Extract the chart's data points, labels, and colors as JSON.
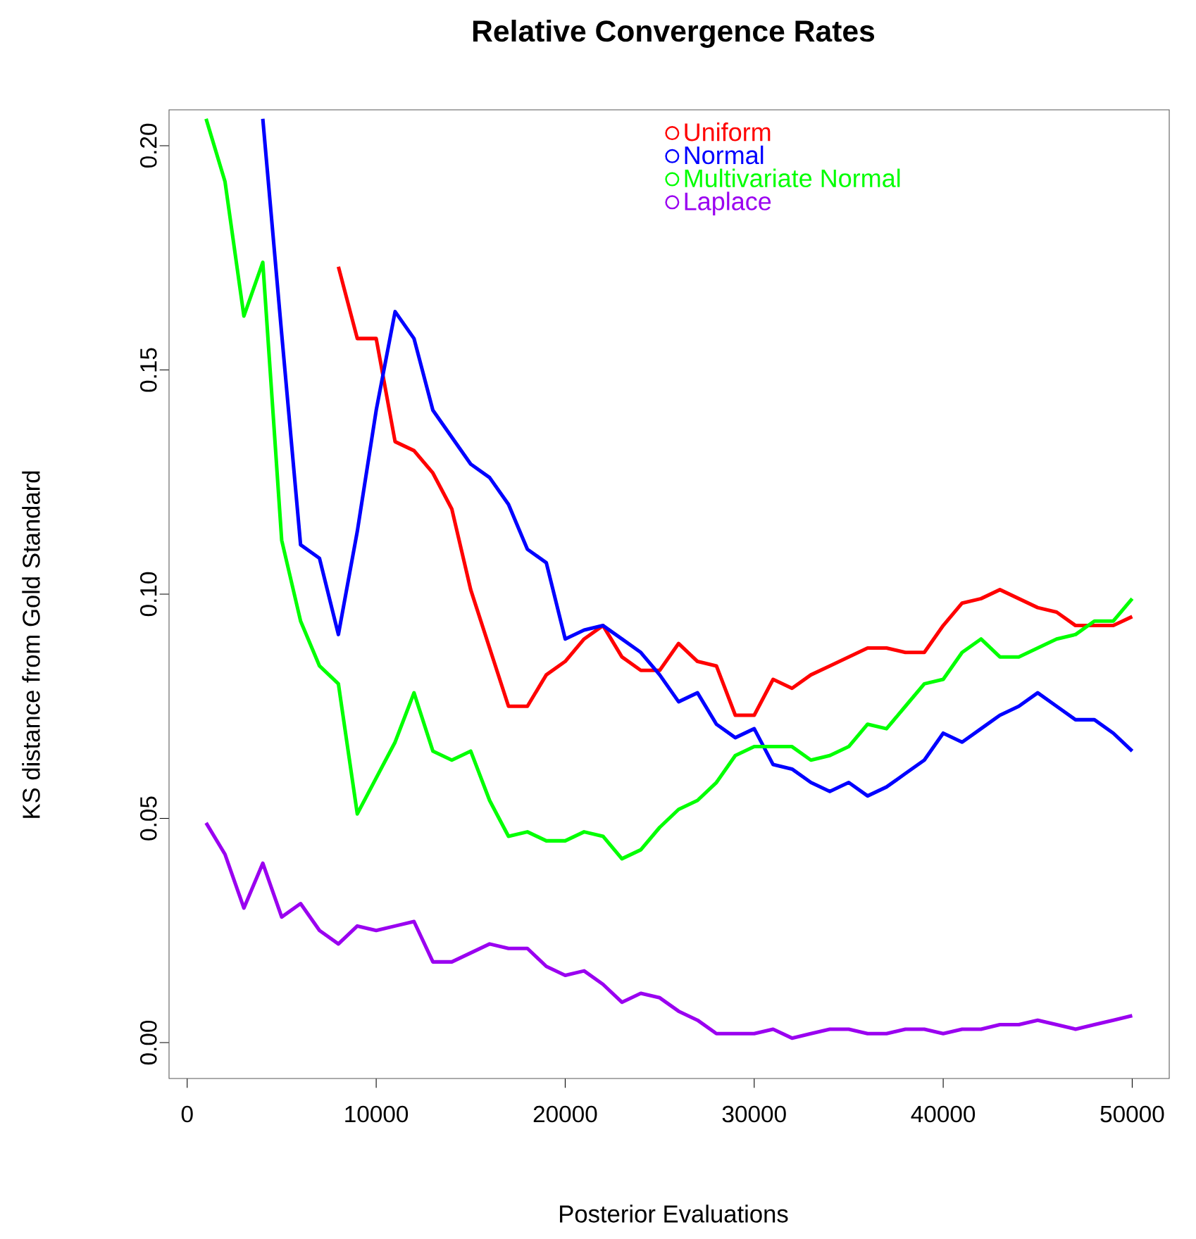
{
  "chart_data": {
    "type": "line",
    "title": "Relative Convergence Rates",
    "xlabel": "Posterior Evaluations",
    "ylabel": "KS distance from Gold Standard",
    "x": [
      1000,
      2000,
      3000,
      4000,
      5000,
      6000,
      7000,
      8000,
      9000,
      10000,
      11000,
      12000,
      13000,
      14000,
      15000,
      16000,
      17000,
      18000,
      19000,
      20000,
      21000,
      22000,
      23000,
      24000,
      25000,
      26000,
      27000,
      28000,
      29000,
      30000,
      31000,
      32000,
      33000,
      34000,
      35000,
      36000,
      37000,
      38000,
      39000,
      40000,
      41000,
      42000,
      43000,
      44000,
      45000,
      46000,
      47000,
      48000,
      49000,
      50000
    ],
    "series": [
      {
        "name": "Uniform",
        "color": "#ff0000",
        "values": [
          null,
          null,
          null,
          null,
          null,
          null,
          null,
          0.173,
          0.157,
          0.157,
          0.134,
          0.132,
          0.127,
          0.119,
          0.101,
          0.088,
          0.075,
          0.075,
          0.082,
          0.085,
          0.09,
          0.093,
          0.086,
          0.083,
          0.083,
          0.089,
          0.085,
          0.084,
          0.073,
          0.073,
          0.081,
          0.079,
          0.082,
          0.084,
          0.086,
          0.088,
          0.088,
          0.087,
          0.087,
          0.093,
          0.098,
          0.099,
          0.101,
          0.099,
          0.097,
          0.096,
          0.093,
          0.093,
          0.093,
          0.095
        ]
      },
      {
        "name": "Normal",
        "color": "#0000ff",
        "values": [
          null,
          null,
          null,
          0.206,
          0.158,
          0.111,
          0.108,
          0.091,
          0.114,
          0.141,
          0.163,
          0.157,
          0.141,
          0.135,
          0.129,
          0.126,
          0.12,
          0.11,
          0.107,
          0.09,
          0.092,
          0.093,
          0.09,
          0.087,
          0.082,
          0.076,
          0.078,
          0.071,
          0.068,
          0.07,
          0.062,
          0.061,
          0.058,
          0.056,
          0.058,
          0.055,
          0.057,
          0.06,
          0.063,
          0.069,
          0.067,
          0.07,
          0.073,
          0.075,
          0.078,
          0.075,
          0.072,
          0.072,
          0.069,
          0.065
        ]
      },
      {
        "name": "Multivariate Normal",
        "color": "#00ff00",
        "values": [
          0.206,
          0.192,
          0.162,
          0.174,
          0.112,
          0.094,
          0.084,
          0.08,
          0.051,
          0.059,
          0.067,
          0.078,
          0.065,
          0.063,
          0.065,
          0.054,
          0.046,
          0.047,
          0.045,
          0.045,
          0.047,
          0.046,
          0.041,
          0.043,
          0.048,
          0.052,
          0.054,
          0.058,
          0.064,
          0.066,
          0.066,
          0.066,
          0.063,
          0.064,
          0.066,
          0.071,
          0.07,
          0.075,
          0.08,
          0.081,
          0.087,
          0.09,
          0.086,
          0.086,
          0.088,
          0.09,
          0.091,
          0.094,
          0.094,
          0.099
        ]
      },
      {
        "name": "Laplace",
        "color": "#9a00f0",
        "values": [
          0.049,
          0.042,
          0.03,
          0.04,
          0.028,
          0.031,
          0.025,
          0.022,
          0.026,
          0.025,
          0.026,
          0.027,
          0.018,
          0.018,
          0.02,
          0.022,
          0.021,
          0.021,
          0.017,
          0.015,
          0.016,
          0.013,
          0.009,
          0.011,
          0.01,
          0.007,
          0.005,
          0.002,
          0.002,
          0.002,
          0.003,
          0.001,
          0.002,
          0.003,
          0.003,
          0.002,
          0.002,
          0.003,
          0.003,
          0.002,
          0.003,
          0.003,
          0.004,
          0.004,
          0.005,
          0.004,
          0.003,
          0.004,
          0.005,
          0.006
        ]
      }
    ],
    "xlim": [
      -960,
      51960
    ],
    "ylim": [
      -0.008,
      0.208
    ],
    "xticks": [
      0,
      10000,
      20000,
      30000,
      40000,
      50000
    ],
    "yticks": [
      {
        "value": 0,
        "label": "0.00"
      },
      {
        "value": 0.05,
        "label": "0.05"
      },
      {
        "value": 0.1,
        "label": "0.10"
      },
      {
        "value": 0.15,
        "label": "0.15"
      },
      {
        "value": 0.2,
        "label": "0.20"
      }
    ],
    "legend": "top",
    "grid": false,
    "line_style": "solid"
  }
}
